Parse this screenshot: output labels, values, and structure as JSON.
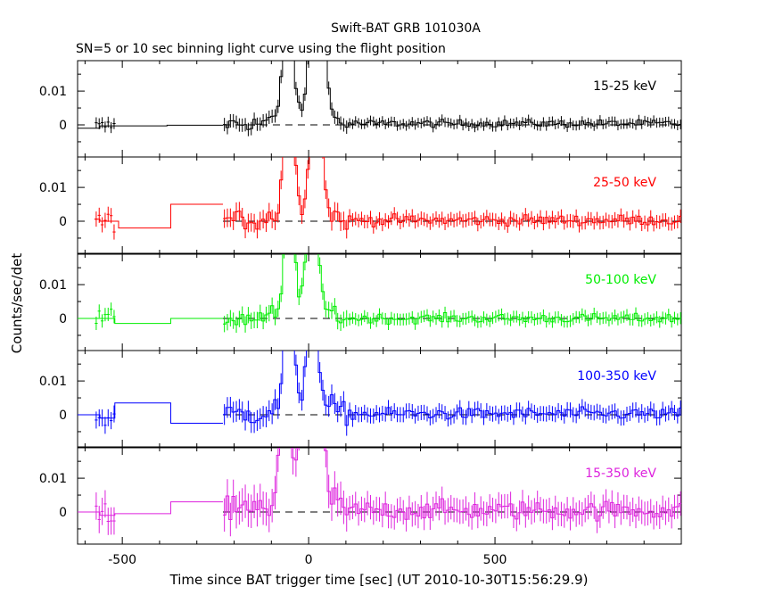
{
  "chart_data": {
    "type": "line",
    "title": "Swift-BAT GRB 101030A",
    "subtitle": "SN=5 or 10 sec binning light curve using the flight position",
    "xlabel": "Time since BAT trigger time [sec] (UT 2010-10-30T15:56:29.9)",
    "ylabel": "Counts/sec/det",
    "xlim": [
      -620,
      1000
    ],
    "ylim": [
      -0.0095,
      0.019
    ],
    "x_ticks": [
      "-500",
      "0",
      "500"
    ],
    "x_tick_values": [
      -500,
      0,
      500
    ],
    "y_ticks": [
      "0",
      "0.01"
    ],
    "y_tick_values": [
      0,
      0.01
    ],
    "zero_line": "dashed",
    "panels": [
      {
        "name": "15-25 keV",
        "color": "#000000",
        "pre_segments": [
          [
            -620,
            -560,
            -0.001
          ],
          [
            -560,
            -380,
            -0.0003
          ],
          [
            -380,
            -230,
            -0.0001
          ]
        ],
        "burst": {
          "spikes": [
            -65,
            -55,
            5,
            15,
            35
          ],
          "intensity": 1.3
        },
        "noise": 0.0018,
        "tail_level": 0.0004
      },
      {
        "name": "25-50 keV",
        "color": "#ff0000",
        "pre_segments": [
          [
            -575,
            -560,
            0.0006
          ],
          [
            -560,
            -510,
            0.0
          ],
          [
            -510,
            -370,
            -0.002
          ],
          [
            -370,
            -230,
            0.005
          ]
        ],
        "burst": {
          "spikes": [
            -65,
            -50,
            5,
            15,
            25
          ],
          "intensity": 1.1
        },
        "noise": 0.0025,
        "tail_level": 0.0003
      },
      {
        "name": "50-100 keV",
        "color": "#00ee00",
        "pre_segments": [
          [
            -620,
            -560,
            0.0
          ],
          [
            -560,
            -520,
            0.0
          ],
          [
            -520,
            -370,
            -0.0015
          ],
          [
            -370,
            -230,
            0.0
          ]
        ],
        "burst": {
          "spikes": [
            -60,
            -50,
            -2,
            5,
            12
          ],
          "intensity": 1.1
        },
        "noise": 0.0022,
        "tail_level": 0.0
      },
      {
        "name": "100-350 keV",
        "color": "#0000ff",
        "pre_segments": [
          [
            -620,
            -560,
            0.0
          ],
          [
            -560,
            -520,
            -0.001
          ],
          [
            -520,
            -370,
            0.0035
          ],
          [
            -370,
            -230,
            -0.0025
          ]
        ],
        "burst": {
          "spikes": [
            -60,
            -55,
            2,
            5,
            10
          ],
          "intensity": 1.2
        },
        "noise": 0.0028,
        "tail_level": 0.0003
      },
      {
        "name": "15-350 keV",
        "color": "#dd22dd",
        "pre_segments": [
          [
            -620,
            -560,
            0.0
          ],
          [
            -560,
            -520,
            -0.001
          ],
          [
            -520,
            -370,
            -0.0005
          ],
          [
            -370,
            -230,
            0.003
          ]
        ],
        "burst": {
          "spikes": [
            -75,
            -60,
            -20,
            5,
            15,
            30
          ],
          "intensity": 1.4
        },
        "noise": 0.0045,
        "tail_level": 0.0005
      }
    ]
  }
}
